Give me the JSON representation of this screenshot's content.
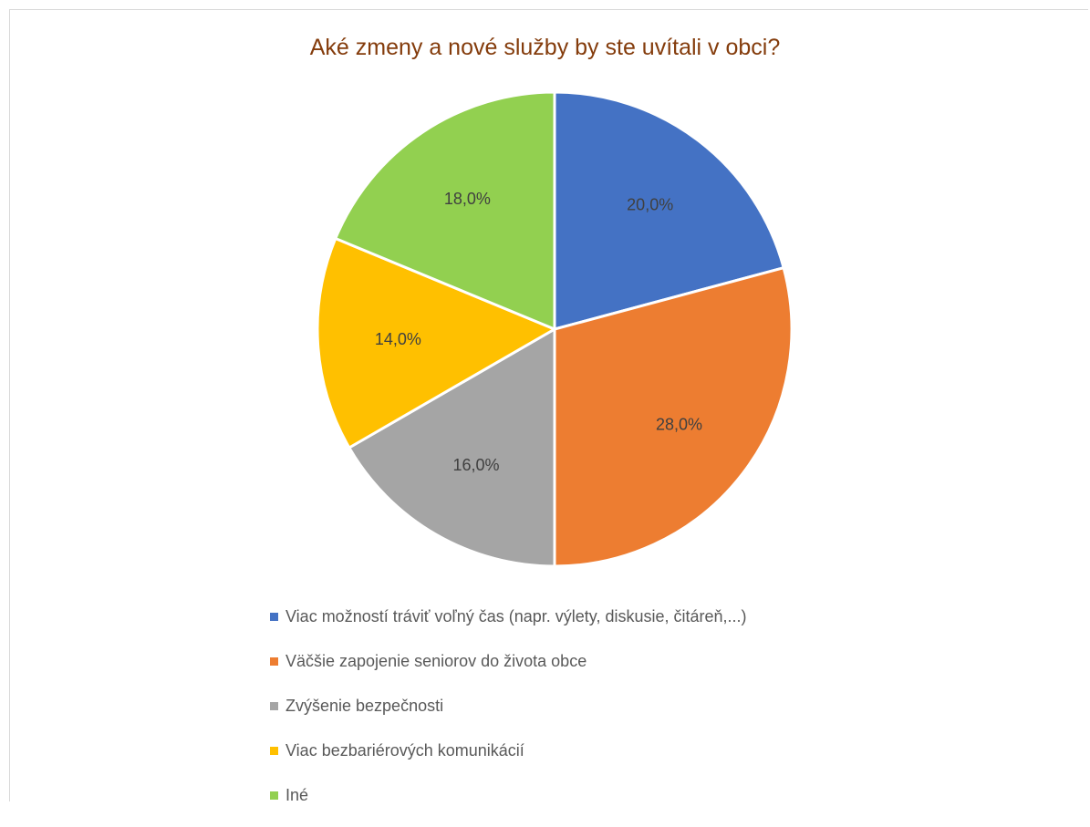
{
  "chart_data": {
    "type": "pie",
    "title": "Aké zmeny a nové služby by ste uvítali v obci?",
    "categories": [
      "Viac možností tráviť voľný čas (napr. výlety, diskusie, čitáreň,...)",
      "Väčšie zapojenie seniorov do života obce",
      "Zvýšenie bezpečnosti",
      "Viac bezbariérových komunikácií",
      "Iné"
    ],
    "values": [
      20.0,
      28.0,
      16.0,
      14.0,
      18.0
    ],
    "data_labels": [
      "20,0%",
      "28,0%",
      "16,0%",
      "14,0%",
      "18,0%"
    ],
    "colors": [
      "#4472c4",
      "#ed7d31",
      "#a5a5a5",
      "#ffc000",
      "#92d050"
    ],
    "legend_position": "bottom"
  }
}
